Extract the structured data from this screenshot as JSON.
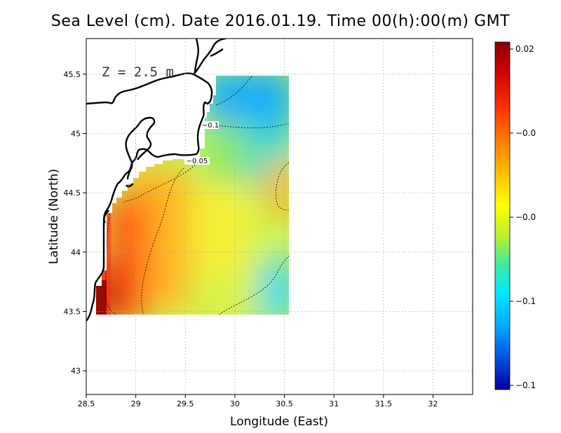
{
  "title": "Sea Level (cm). Date 2016.01.19. Time 00(h):00(m) GMT",
  "annotation": "Z = 2.5 m",
  "x_axis": {
    "label": "Longitude (East)",
    "range": [
      28.5,
      32.4
    ],
    "ticks": [
      "28.5",
      "29",
      "29.5",
      "30",
      "30.5",
      "31",
      "31.5",
      "32"
    ]
  },
  "y_axis": {
    "label": "Latitude (North)",
    "range": [
      42.8,
      45.8
    ],
    "ticks": [
      "43",
      "43.5",
      "44",
      "44.5",
      "45",
      "45.5"
    ]
  },
  "colorbar": {
    "ticks": [
      "0.02",
      "−0.0",
      "−0.0",
      "−0.1",
      "−0.1"
    ],
    "colors": [
      "#9b0000",
      "#d40000",
      "#ff3000",
      "#ff8a00",
      "#ffd200",
      "#ffff00",
      "#9cf040",
      "#34e8a8",
      "#00e0ff",
      "#00a8ff",
      "#0050e0",
      "#0000a0"
    ]
  },
  "contour_labels": [
    "−0.1",
    "−0.05"
  ],
  "grid": true
}
